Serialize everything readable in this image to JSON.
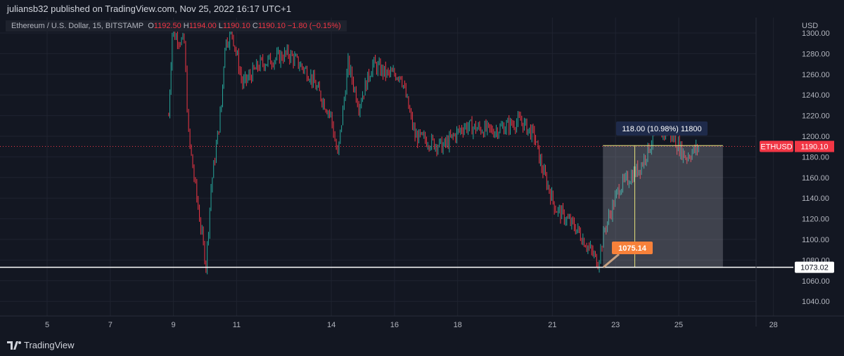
{
  "header": {
    "published": "juliansb32 published on TradingView.com, Nov 25, 2022 16:17 UTC+1"
  },
  "legend": {
    "symbol": "Ethereum / U.S. Dollar, 15, BITSTAMP",
    "o_label": "O",
    "o": "1192.50",
    "h_label": "H",
    "h": "1194.00",
    "l_label": "L",
    "l": "1190.10",
    "c_label": "C",
    "c": "1190.10",
    "change": "−1.80 (−0.15%)"
  },
  "footer": {
    "brand": "TradingView"
  },
  "colors": {
    "up": "#26a69a",
    "down": "#f23645",
    "background": "#131722",
    "measure": "#e5e07a",
    "callout": "#f7813a"
  },
  "chart_data": {
    "type": "candlestick",
    "currency": "USD",
    "ylim": [
      1030,
      1305
    ],
    "y_ticks": [
      "1300.00",
      "1280.00",
      "1260.00",
      "1240.00",
      "1220.00",
      "1200.00",
      "1180.00",
      "1160.00",
      "1140.00",
      "1120.00",
      "1100.00",
      "1080.00",
      "1060.00",
      "1040.00"
    ],
    "x_ticks": [
      "5",
      "7",
      "9",
      "11",
      "14",
      "16",
      "18",
      "21",
      "23",
      "25",
      "28"
    ],
    "x_tick_days": [
      5,
      7,
      9,
      11,
      14,
      16,
      18,
      21,
      23,
      25,
      28
    ],
    "price_path": [
      [
        8.85,
        1220
      ],
      [
        8.96,
        1300
      ],
      [
        9.34,
        1290
      ],
      [
        9.48,
        1200
      ],
      [
        9.74,
        1140
      ],
      [
        10.03,
        1075
      ],
      [
        10.19,
        1150
      ],
      [
        10.52,
        1230
      ],
      [
        10.63,
        1290
      ],
      [
        10.86,
        1300
      ],
      [
        11.19,
        1250
      ],
      [
        11.75,
        1270
      ],
      [
        12.64,
        1280
      ],
      [
        13.31,
        1260
      ],
      [
        13.98,
        1220
      ],
      [
        14.2,
        1180
      ],
      [
        14.53,
        1270
      ],
      [
        14.87,
        1230
      ],
      [
        15.31,
        1270
      ],
      [
        15.76,
        1260
      ],
      [
        16.2,
        1260
      ],
      [
        16.65,
        1200
      ],
      [
        17.54,
        1190
      ],
      [
        18.21,
        1210
      ],
      [
        19.1,
        1205
      ],
      [
        19.99,
        1215
      ],
      [
        20.43,
        1200
      ],
      [
        20.66,
        1170
      ],
      [
        21.1,
        1130
      ],
      [
        21.77,
        1110
      ],
      [
        22.44,
        1078
      ],
      [
        22.66,
        1110
      ],
      [
        23.11,
        1150
      ],
      [
        23.78,
        1170
      ],
      [
        24.22,
        1200
      ],
      [
        24.67,
        1205
      ],
      [
        25.22,
        1180
      ],
      [
        25.67,
        1190
      ]
    ],
    "last_price": {
      "symbol": "ETHUSD",
      "value": "1190.10",
      "price": 1190.1
    },
    "support_line": {
      "label": "1073.02",
      "price": 1073.02
    },
    "callout": {
      "label": "1075.14",
      "price": 1075.14
    },
    "measure": {
      "label": "118.00 (10.98%) 11800",
      "from_price": 1073.02,
      "to_price": 1191.02,
      "from_day": 22.6,
      "to_day": 26.4
    }
  }
}
